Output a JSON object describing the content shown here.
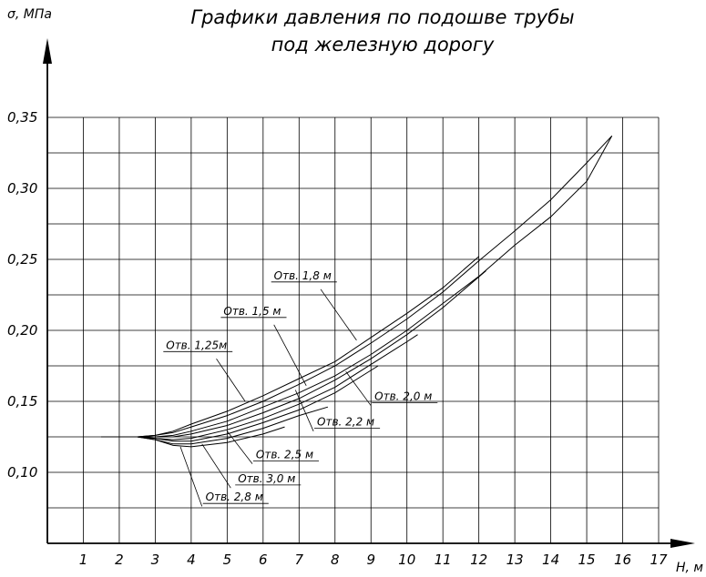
{
  "chart_data": {
    "type": "line",
    "title_lines": [
      "Графики давления по подошве трубы",
      "под железную дорогу"
    ],
    "xlabel": "H, м",
    "ylabel": "σ, МПа",
    "xlim": [
      0,
      17
    ],
    "ylim": [
      0.05,
      0.35
    ],
    "x_ticks": [
      "1",
      "2",
      "3",
      "4",
      "5",
      "6",
      "7",
      "8",
      "9",
      "10",
      "11",
      "12",
      "13",
      "14",
      "15",
      "16",
      "17"
    ],
    "y_ticks": [
      {
        "value": 0.35,
        "label": "0,35"
      },
      {
        "value": 0.3,
        "label": "0,30"
      },
      {
        "value": 0.25,
        "label": "0,25"
      },
      {
        "value": 0.2,
        "label": "0,20"
      },
      {
        "value": 0.15,
        "label": "0,15"
      },
      {
        "value": 0.1,
        "label": "0,10"
      }
    ],
    "grid": true,
    "series": [
      {
        "name": "Отв. 1,8 м",
        "label_x": 6.3,
        "label_y": 0.236,
        "leader": [
          [
            7.6,
            0.229
          ],
          [
            8.6,
            0.193
          ]
        ],
        "points": [
          [
            1.5,
            0.125
          ],
          [
            2.5,
            0.125
          ],
          [
            3.0,
            0.126
          ],
          [
            3.5,
            0.129
          ],
          [
            4,
            0.134
          ],
          [
            5,
            0.143
          ],
          [
            6,
            0.154
          ],
          [
            7,
            0.166
          ],
          [
            8,
            0.178
          ],
          [
            9,
            0.195
          ],
          [
            10,
            0.212
          ],
          [
            11,
            0.23
          ],
          [
            12,
            0.252
          ]
        ]
      },
      {
        "name": "Отв. 1,5 м",
        "label_x": 4.9,
        "label_y": 0.211,
        "leader": [
          [
            6.3,
            0.204
          ],
          [
            7.2,
            0.161
          ]
        ],
        "points": [
          [
            1.5,
            0.125
          ],
          [
            2.5,
            0.125
          ],
          [
            3.0,
            0.126
          ],
          [
            3.5,
            0.128
          ],
          [
            4,
            0.132
          ],
          [
            5,
            0.14
          ],
          [
            6,
            0.15
          ],
          [
            7,
            0.162
          ],
          [
            8,
            0.175
          ],
          [
            9,
            0.191
          ],
          [
            10,
            0.208
          ],
          [
            11,
            0.227
          ],
          [
            12,
            0.249
          ],
          [
            13,
            0.27
          ],
          [
            14,
            0.292
          ],
          [
            15,
            0.318
          ],
          [
            15.7,
            0.337
          ]
        ]
      },
      {
        "name": "Отв. 1,25м",
        "label_x": 3.3,
        "label_y": 0.187,
        "leader": [
          [
            4.7,
            0.18
          ],
          [
            5.5,
            0.15
          ]
        ],
        "points": [
          [
            1.5,
            0.125
          ],
          [
            2.5,
            0.125
          ],
          [
            3.0,
            0.125
          ],
          [
            3.5,
            0.126
          ],
          [
            4,
            0.129
          ],
          [
            5,
            0.136
          ],
          [
            6,
            0.146
          ],
          [
            7,
            0.156
          ],
          [
            8,
            0.168
          ],
          [
            9,
            0.183
          ],
          [
            10,
            0.2
          ],
          [
            11,
            0.219
          ],
          [
            12,
            0.238
          ],
          [
            13,
            0.26
          ],
          [
            14,
            0.28
          ],
          [
            15,
            0.305
          ],
          [
            15.7,
            0.337
          ]
        ]
      },
      {
        "name": "Отв. 2,0 м",
        "label_x": 9.1,
        "label_y": 0.151,
        "leader": [
          [
            9.0,
            0.147
          ],
          [
            8.3,
            0.171
          ]
        ],
        "points": [
          [
            1.5,
            0.125
          ],
          [
            2.5,
            0.125
          ],
          [
            3.0,
            0.125
          ],
          [
            3.5,
            0.125
          ],
          [
            4,
            0.127
          ],
          [
            5,
            0.133
          ],
          [
            6,
            0.142
          ],
          [
            7,
            0.152
          ],
          [
            8,
            0.165
          ],
          [
            9,
            0.18
          ],
          [
            10,
            0.197
          ],
          [
            11,
            0.216
          ],
          [
            12.2,
            0.242
          ]
        ]
      },
      {
        "name": "Отв. 2,2 м",
        "label_x": 7.5,
        "label_y": 0.133,
        "leader": [
          [
            7.4,
            0.129
          ],
          [
            6.9,
            0.158
          ]
        ],
        "points": [
          [
            1.5,
            0.125
          ],
          [
            2.5,
            0.125
          ],
          [
            3.0,
            0.124
          ],
          [
            3.5,
            0.123
          ],
          [
            4,
            0.124
          ],
          [
            5,
            0.13
          ],
          [
            6,
            0.138
          ],
          [
            7,
            0.148
          ],
          [
            8,
            0.16
          ],
          [
            9,
            0.176
          ],
          [
            10,
            0.192
          ],
          [
            10.3,
            0.197
          ]
        ]
      },
      {
        "name": "Отв. 2,5 м",
        "label_x": 5.8,
        "label_y": 0.11,
        "leader": [
          [
            5.7,
            0.106
          ],
          [
            5.0,
            0.129
          ]
        ],
        "points": [
          [
            1.5,
            0.125
          ],
          [
            2.5,
            0.125
          ],
          [
            3.0,
            0.124
          ],
          [
            3.5,
            0.122
          ],
          [
            4,
            0.122
          ],
          [
            5,
            0.127
          ],
          [
            6,
            0.135
          ],
          [
            7,
            0.144
          ],
          [
            8,
            0.156
          ],
          [
            9.2,
            0.175
          ]
        ]
      },
      {
        "name": "Отв. 3,0 м",
        "label_x": 5.3,
        "label_y": 0.093,
        "leader": [
          [
            5.1,
            0.089
          ],
          [
            4.3,
            0.12
          ]
        ],
        "points": [
          [
            1.5,
            0.125
          ],
          [
            2.5,
            0.125
          ],
          [
            3.0,
            0.123
          ],
          [
            3.5,
            0.12
          ],
          [
            4,
            0.12
          ],
          [
            5,
            0.124
          ],
          [
            6,
            0.131
          ],
          [
            7,
            0.14
          ],
          [
            7.8,
            0.146
          ]
        ]
      },
      {
        "name": "Отв. 2,8 м",
        "label_x": 4.4,
        "label_y": 0.08,
        "leader": [
          [
            4.3,
            0.076
          ],
          [
            3.7,
            0.118
          ]
        ],
        "points": [
          [
            1.5,
            0.125
          ],
          [
            2.5,
            0.125
          ],
          [
            3.0,
            0.123
          ],
          [
            3.5,
            0.119
          ],
          [
            4,
            0.118
          ],
          [
            5,
            0.121
          ],
          [
            6,
            0.127
          ],
          [
            6.6,
            0.132
          ]
        ]
      }
    ]
  }
}
